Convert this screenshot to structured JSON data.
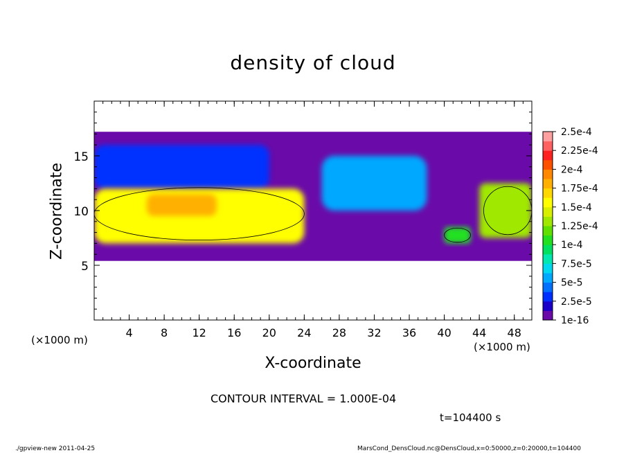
{
  "chart_data": {
    "type": "heatmap",
    "title": "density of cloud",
    "xlabel": "X-coordinate",
    "ylabel": "Z-coordinate",
    "x_unit_label": "(×1000 m)",
    "xlim": [
      0,
      50
    ],
    "ylim": [
      0,
      20
    ],
    "x_ticks": [
      4,
      8,
      12,
      16,
      20,
      24,
      28,
      32,
      36,
      40,
      44,
      48
    ],
    "y_ticks": [
      5,
      10,
      15
    ],
    "colorbar": {
      "labels": [
        "2.5e-4",
        "2.25e-4",
        "2e-4",
        "1.75e-4",
        "1.5e-4",
        "1.25e-4",
        "1e-4",
        "7.5e-5",
        "5e-5",
        "2.5e-5",
        "1e-16"
      ],
      "levels": [
        1e-16,
        1.25e-05,
        2.5e-05,
        3.75e-05,
        5e-05,
        6.25e-05,
        7.5e-05,
        8.75e-05,
        0.0001,
        0.0001125,
        0.000125,
        0.0001375,
        0.00015,
        0.0001625,
        0.000175,
        0.0001875,
        0.0002,
        0.0002125,
        0.000225,
        0.0002375,
        0.00025
      ],
      "colors": [
        "#6a0aa8",
        "#1a00c8",
        "#0030ff",
        "#0070ff",
        "#00a8ff",
        "#00d8f0",
        "#00e8b0",
        "#00e060",
        "#20e020",
        "#60e000",
        "#a0e800",
        "#d8f000",
        "#ffff00",
        "#ffd800",
        "#ffb000",
        "#ff8800",
        "#ff5000",
        "#ff2020",
        "#ff6060",
        "#ffa0a0"
      ]
    },
    "contour_interval": 0.0001,
    "regions": [
      {
        "desc": "cloud layer extent",
        "level": 5e-06,
        "x_range": [
          0,
          50
        ],
        "z_range": [
          5.4,
          17.2
        ]
      },
      {
        "desc": "upper cloud band",
        "level": 3.5e-05,
        "x_range": [
          0,
          20
        ],
        "z_range": [
          12,
          16
        ]
      },
      {
        "desc": "left dense core",
        "level": 0.000155,
        "x_range": [
          0,
          24
        ],
        "z_range": [
          7,
          12
        ]
      },
      {
        "desc": "left peak",
        "level": 0.00018,
        "x_range": [
          6,
          14
        ],
        "z_range": [
          9.5,
          11.5
        ]
      },
      {
        "desc": "central upper cloud",
        "level": 6e-05,
        "x_range": [
          26,
          38
        ],
        "z_range": [
          10,
          15
        ]
      },
      {
        "desc": "right dense patch",
        "level": 0.00013,
        "x_range": [
          44,
          50
        ],
        "z_range": [
          7.5,
          12.5
        ]
      },
      {
        "desc": "small patch near x=42",
        "level": 0.000105,
        "x_range": [
          40,
          43
        ],
        "z_range": [
          7,
          8.5
        ]
      }
    ],
    "grid": false
  },
  "labels": {
    "title": "density of cloud",
    "xlabel": "X-coordinate",
    "ylabel": "Z-coordinate",
    "x_unit_left": "(×1000 m)",
    "x_unit_right": "(×1000 m)",
    "contour_interval": "CONTOUR INTERVAL = 1.000E-04",
    "time": "t=104400 s",
    "footer_left": "./gpview-new   2011-04-25",
    "footer_right": "MarsCond_DensCloud.nc@DensCloud,x=0:50000,z=0:20000,t=104400"
  }
}
